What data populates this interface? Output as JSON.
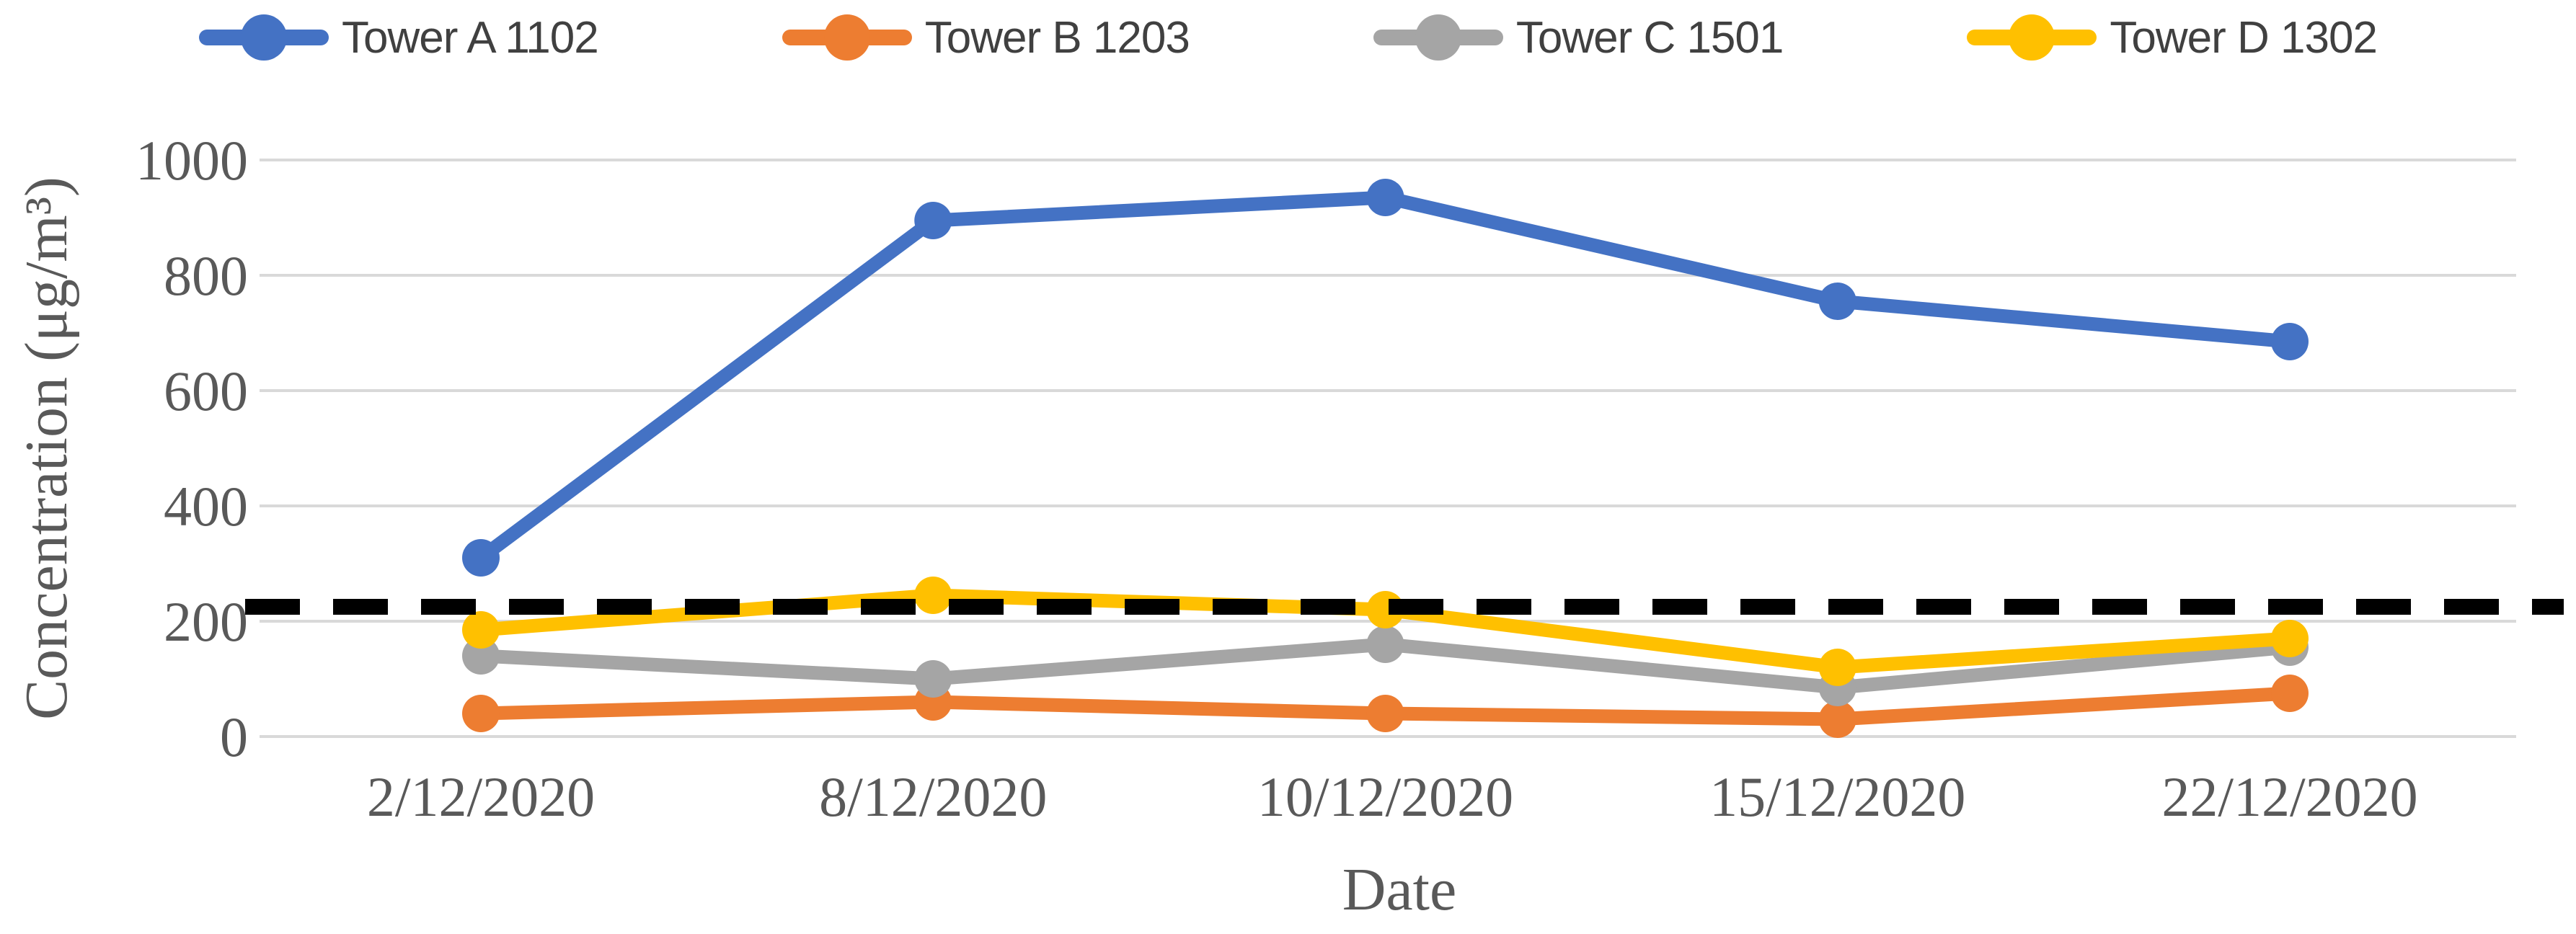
{
  "chart_data": {
    "type": "line",
    "title": "",
    "categories": [
      "2/12/2020",
      "8/12/2020",
      "10/12/2020",
      "15/12/2020",
      "22/12/2020"
    ],
    "series": [
      {
        "name": "Tower A 1102",
        "color": "#4472C4",
        "values": [
          310,
          895,
          935,
          755,
          685
        ]
      },
      {
        "name": "Tower B 1203",
        "color": "#ED7D31",
        "values": [
          40,
          60,
          40,
          30,
          75
        ]
      },
      {
        "name": "Tower C 1501",
        "color": "#A5A5A5",
        "values": [
          140,
          100,
          160,
          85,
          155
        ]
      },
      {
        "name": "Tower D 1302",
        "color": "#FFC000",
        "values": [
          185,
          245,
          220,
          120,
          170
        ]
      }
    ],
    "threshold_line": {
      "value": 225,
      "color": "#000000",
      "style": "dashed"
    },
    "xlabel": "Date",
    "ylabel": "Concentration (μg/m³)",
    "ylim": [
      0,
      1000
    ],
    "yticks": [
      0,
      200,
      400,
      600,
      800,
      1000
    ],
    "ytick_labels": [
      "0",
      "200",
      "400",
      "600",
      "800",
      "1000"
    ],
    "legend_position": "top",
    "grid": "horizontal",
    "marker": "circle"
  },
  "styles": {
    "grid_color": "#D9D9D9",
    "axis_text_color": "#595959",
    "legend_text_color": "#404040",
    "background": "#FFFFFF"
  }
}
